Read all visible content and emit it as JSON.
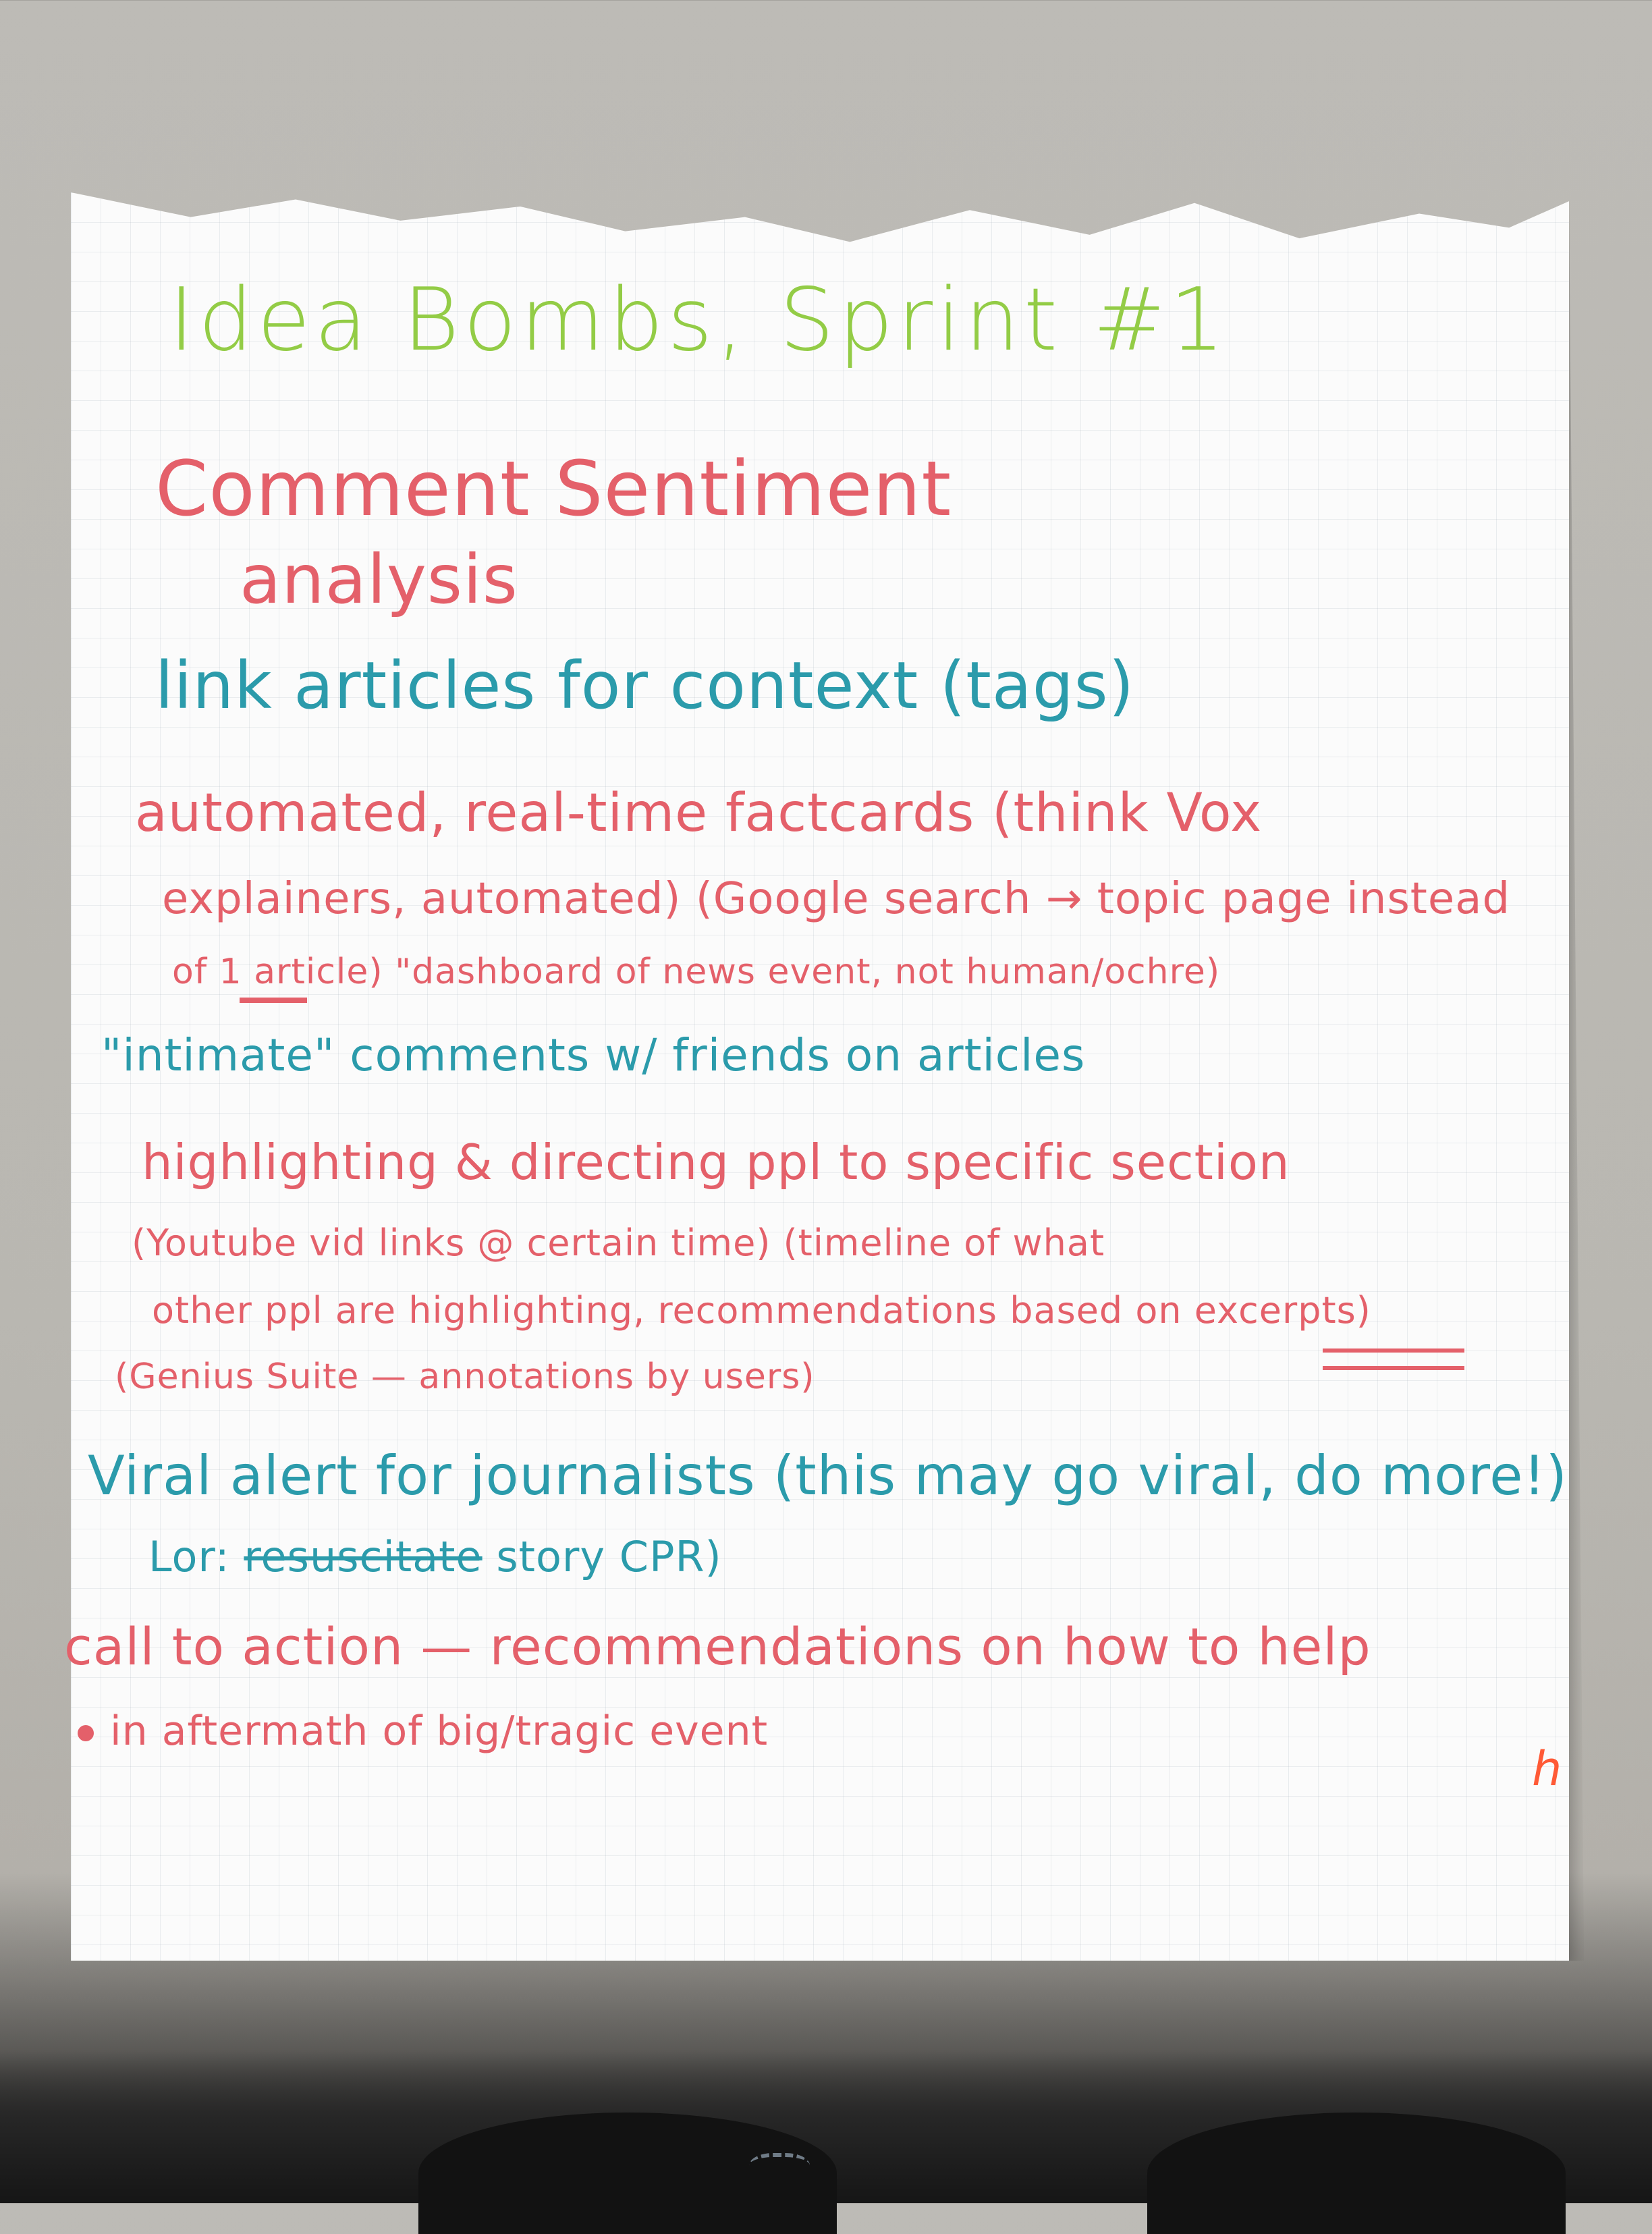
{
  "scene": {
    "description_colors": {
      "green_marker": "#93cc46",
      "red_marker": "#e4606a",
      "teal_marker": "#2b9bab",
      "orange_marker": "#ff5a36",
      "paper": "#fbfbfb",
      "table": "#bdbbb6"
    }
  },
  "poster": {
    "title": "Idea Bombs, Sprint #1",
    "lines": {
      "comment_1": "Comment Sentiment",
      "comment_2": "analysis",
      "link": "link articles for context (tags)",
      "auto_1": "automated, real-time factcards (think Vox",
      "auto_2": "explainers, automated) (Google search → topic page instead",
      "auto_3": "of 1 article) \"dashboard of news event, not human/ochre)",
      "intimate": "\"intimate\" comments w/ friends on articles",
      "highlight_1": "highlighting & directing ppl to specific section",
      "highlight_2": "(Youtube vid links @ certain time) (timeline of what",
      "highlight_3": "other ppl are highlighting, recommendations based on excerpts)",
      "highlight_4": "(Genius Suite — annotations by users)",
      "viral_1": "Viral alert for journalists (this may go viral, do more!)",
      "viral_2_prefix": "Lor: ",
      "viral_2_struck": "resuscitate",
      "viral_2_suffix": " story CPR)",
      "cta_1": "call to action — recommendations on how to help",
      "cta_2": "in aftermath of big/tragic event",
      "initials": "h"
    }
  }
}
